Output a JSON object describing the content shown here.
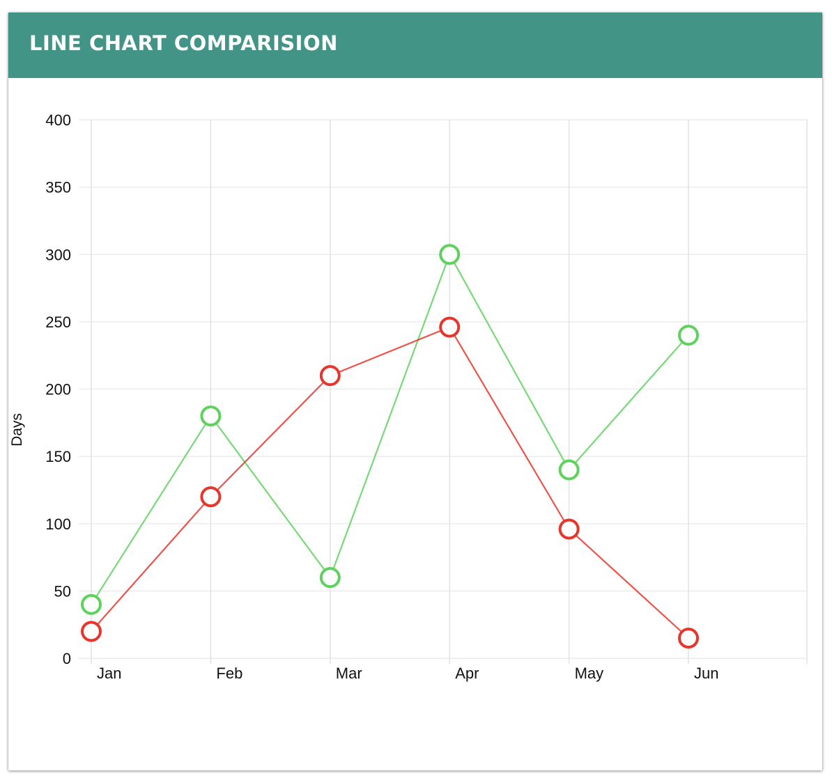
{
  "header": {
    "title": "LINE CHART COMPARISION",
    "background": "#429586"
  },
  "chart_data": {
    "type": "line",
    "categories": [
      "Jan",
      "Feb",
      "Mar",
      "Apr",
      "May",
      "Jun"
    ],
    "series": [
      {
        "values": [
          40,
          180,
          60,
          300,
          140,
          240
        ],
        "color": "#5fd15f"
      },
      {
        "values": [
          20,
          120,
          210,
          246,
          96,
          15
        ],
        "color": "#e8352b"
      }
    ],
    "ylabel": "Days",
    "xlabel": "",
    "ylim": [
      0,
      400
    ],
    "yticks": [
      0,
      50,
      100,
      150,
      200,
      250,
      300,
      350,
      400
    ],
    "grid": true,
    "legend": "none"
  }
}
